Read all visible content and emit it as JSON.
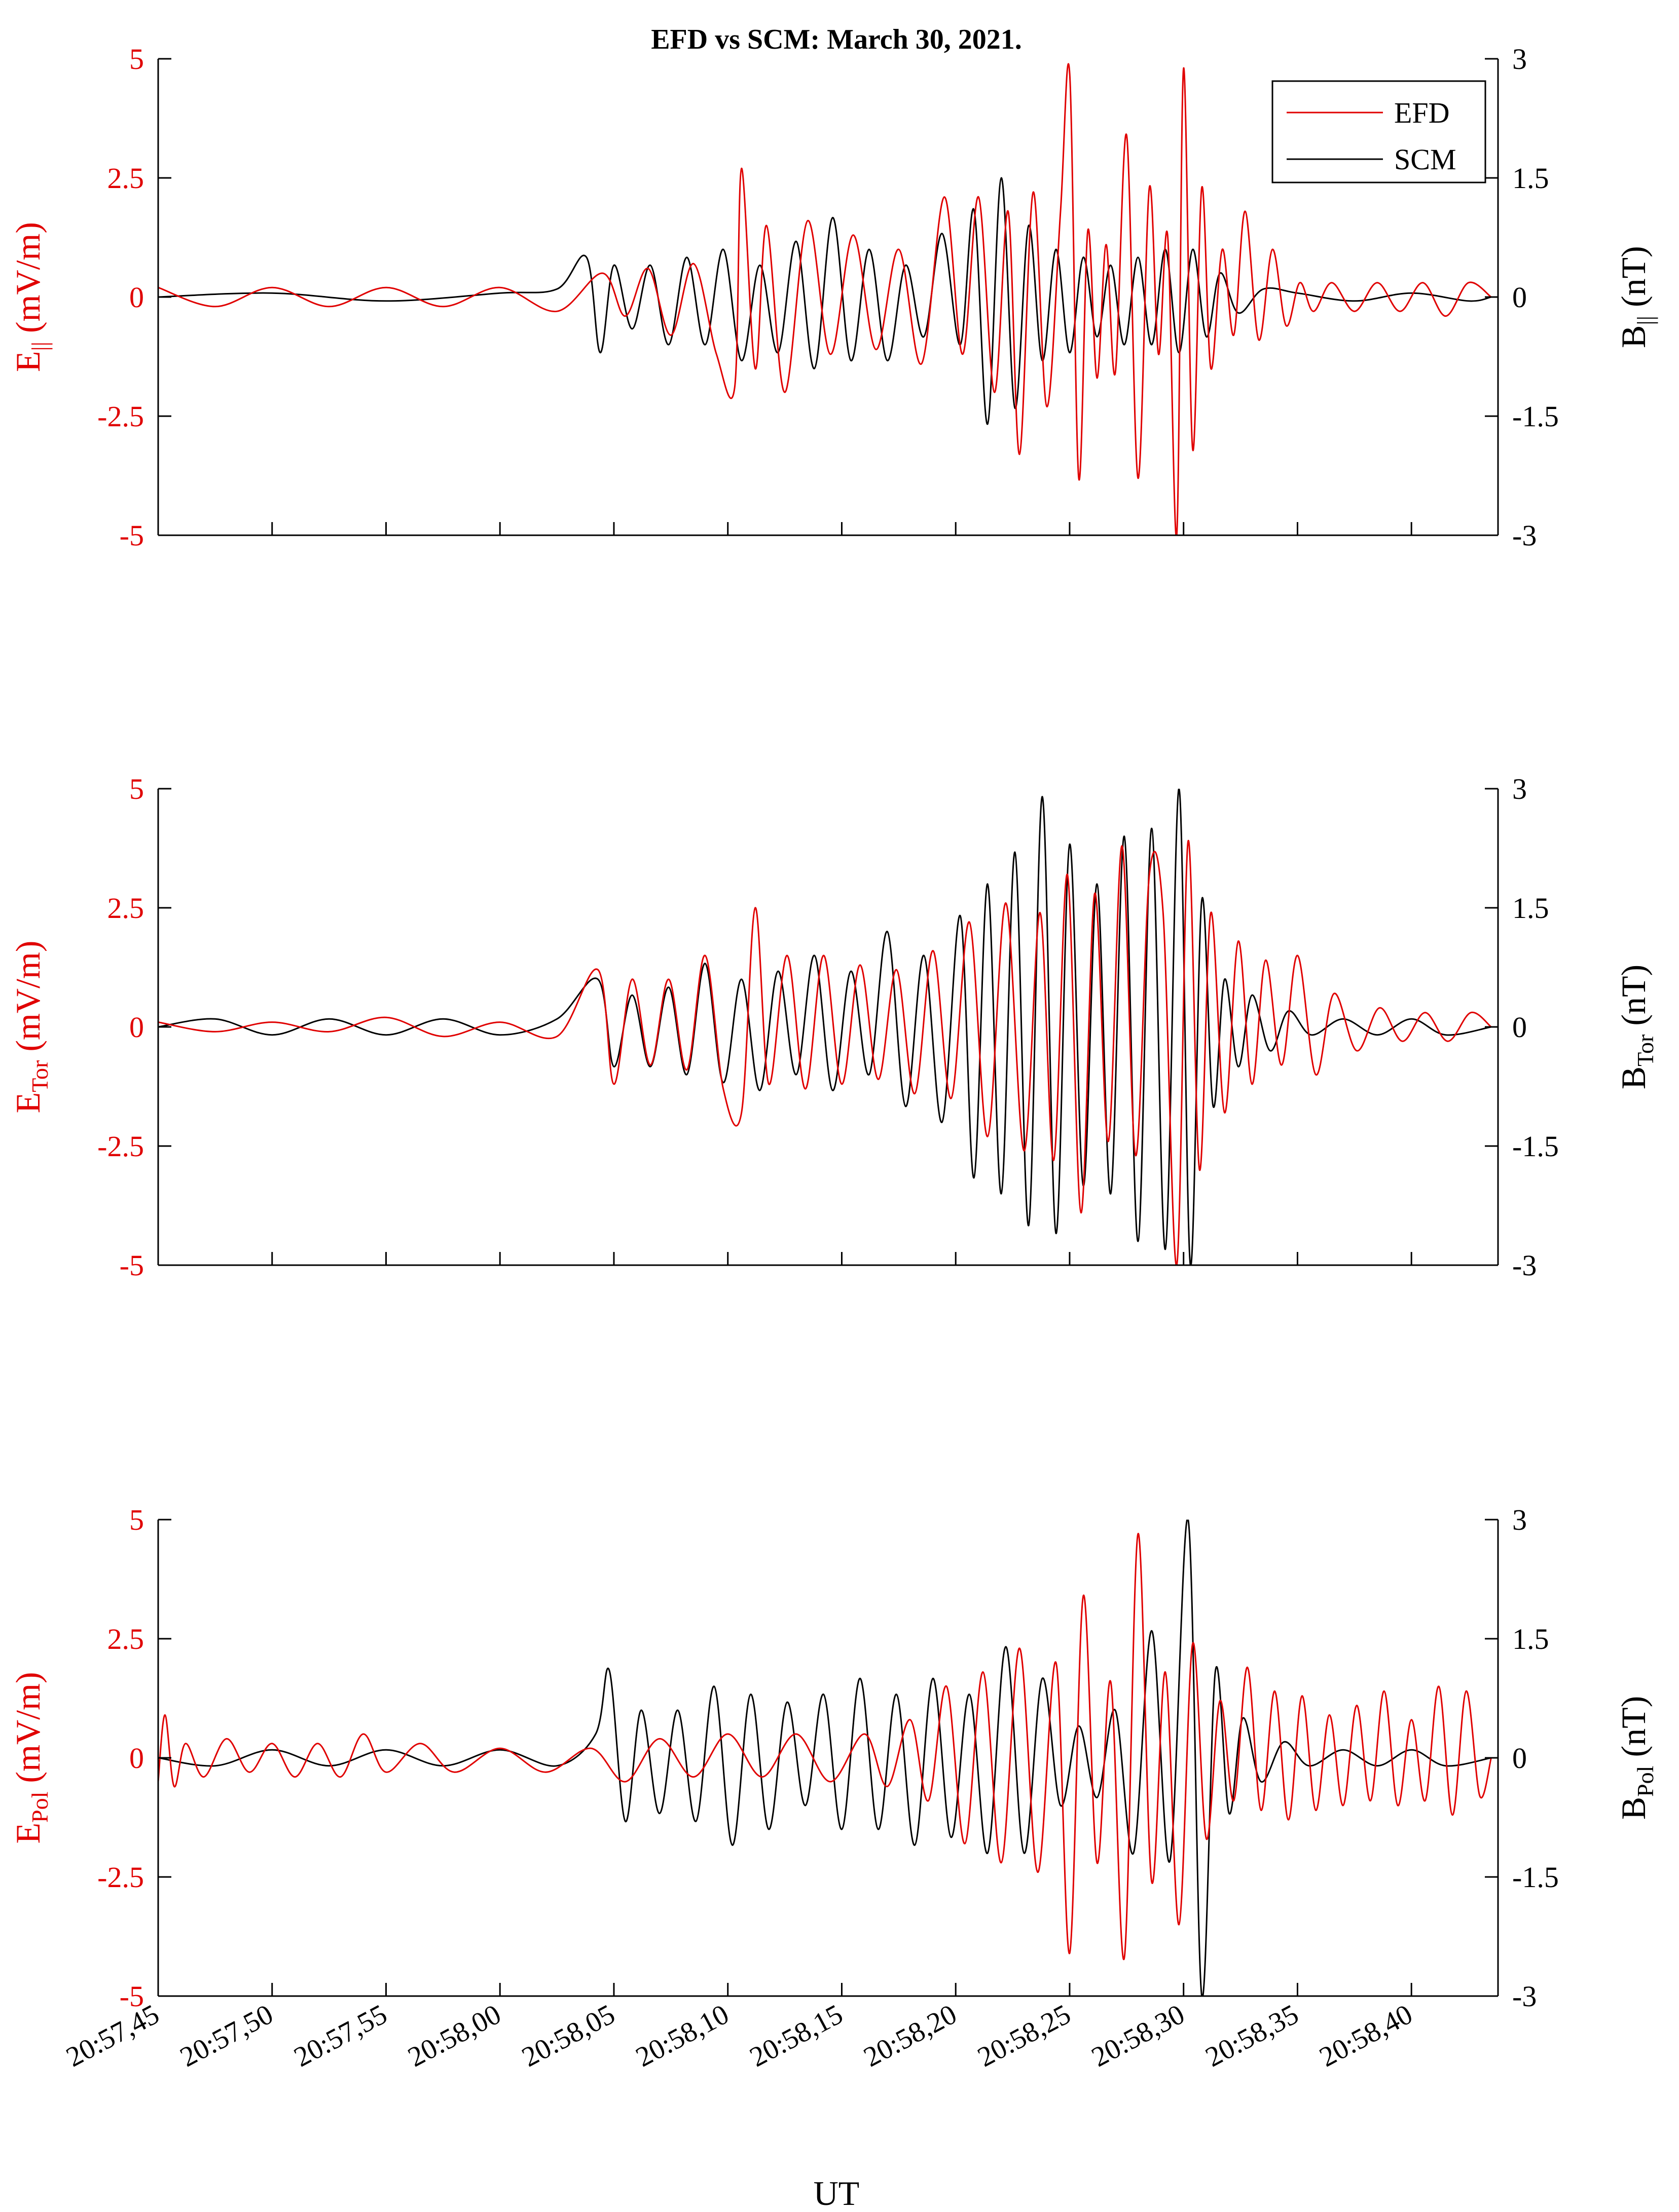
{
  "chart_data": {
    "type": "line",
    "title": "EFD vs SCM: March 30, 2021.",
    "xlabel": "UT",
    "x_tick_labels": [
      "20:57,45",
      "20:57,50",
      "20:57,55",
      "20:58,00",
      "20:58,05",
      "20:58,10",
      "20:58,15",
      "20:58,20",
      "20:58,25",
      "20:58,30",
      "20:58,35",
      "20:58,40"
    ],
    "x_tick_seconds": [
      45,
      50,
      55,
      60,
      65,
      70,
      75,
      80,
      85,
      90,
      95,
      100
    ],
    "xlim_seconds": [
      45,
      103.8
    ],
    "x_note": "seconds after 20:57:00 UT",
    "legend": {
      "placement": "top-right",
      "entries": [
        {
          "name": "EFD",
          "color": "#e00000"
        },
        {
          "name": "SCM",
          "color": "#000000"
        }
      ]
    },
    "colors": {
      "efd": "#e00000",
      "scm": "#000000"
    },
    "left_tick_labels": [
      "5",
      "2.5",
      "0",
      "-2.5",
      "-5"
    ],
    "right_tick_labels": [
      "3",
      "1.5",
      "0",
      "-1.5",
      "-3"
    ],
    "panels": [
      {
        "name": "parallel",
        "ylabel_left": {
          "main": "E",
          "sub": "||",
          "unit": " (mV/m)"
        },
        "ylabel_right": {
          "main": "B",
          "sub": "||",
          "unit": " (nT)"
        },
        "ylim_left": [
          -5,
          5
        ],
        "ylim_right": [
          -3,
          3
        ],
        "series": [
          {
            "name": "EFD",
            "axis": "left",
            "x": [
              45,
              47.5,
              50,
              52.5,
              55,
              57.5,
              60,
              62.5,
              64.5,
              65.5,
              66.5,
              67.5,
              68.5,
              69.5,
              70.3,
              70.6,
              71.2,
              71.7,
              72.5,
              73.5,
              74.5,
              75.5,
              76.5,
              77.5,
              78.5,
              79.5,
              80.3,
              81.0,
              81.7,
              82.3,
              82.8,
              83.4,
              84.0,
              84.6,
              85.0,
              85.4,
              85.8,
              86.2,
              86.6,
              87.0,
              87.5,
              88.0,
              88.5,
              88.9,
              89.3,
              89.7,
              90.0,
              90.4,
              90.8,
              91.2,
              91.7,
              92.2,
              92.7,
              93.3,
              93.9,
              94.5,
              95.1,
              95.7,
              96.5,
              97.5,
              98.5,
              99.5,
              100.5,
              101.5,
              102.5,
              103.5
            ],
            "y": [
              0.2,
              -0.2,
              0.2,
              -0.2,
              0.2,
              -0.2,
              0.2,
              -0.3,
              0.5,
              -0.4,
              0.6,
              -0.8,
              0.7,
              -1.2,
              -1.9,
              2.7,
              -1.5,
              1.5,
              -2.0,
              1.6,
              -1.2,
              1.3,
              -1.1,
              1.0,
              -1.4,
              2.1,
              -1.2,
              2.1,
              -2.0,
              1.8,
              -3.3,
              2.2,
              -2.3,
              1.8,
              4.7,
              -3.8,
              1.4,
              -1.7,
              1.1,
              -1.6,
              3.4,
              -3.8,
              2.3,
              -1.2,
              1.3,
              -5.0,
              4.8,
              -3.2,
              2.3,
              -1.5,
              1.0,
              -0.8,
              1.8,
              -0.9,
              1.0,
              -0.6,
              0.3,
              -0.3,
              0.3,
              -0.3,
              0.3,
              -0.3,
              0.3,
              -0.4,
              0.3,
              0
            ]
          },
          {
            "name": "SCM",
            "axis": "right",
            "x": [
              45,
              50,
              55,
              60,
              62.5,
              63.8,
              64.4,
              65.0,
              65.8,
              66.6,
              67.4,
              68.2,
              69.0,
              69.8,
              70.6,
              71.4,
              72.2,
              73.0,
              73.8,
              74.6,
              75.4,
              76.2,
              77.0,
              77.8,
              78.6,
              79.4,
              80.2,
              80.8,
              81.4,
              82.0,
              82.6,
              83.2,
              83.8,
              84.4,
              85.0,
              85.6,
              86.2,
              86.8,
              87.4,
              88.0,
              88.6,
              89.2,
              89.8,
              90.4,
              91.0,
              91.6,
              92.4,
              93.5,
              95,
              97.5,
              100,
              102.5,
              103.5
            ],
            "y": [
              0,
              0.05,
              -0.05,
              0.05,
              0.1,
              0.5,
              -0.7,
              0.4,
              -0.4,
              0.4,
              -0.6,
              0.5,
              -0.6,
              0.6,
              -0.8,
              0.4,
              -0.7,
              0.7,
              -0.9,
              1.0,
              -0.8,
              0.6,
              -0.8,
              0.4,
              -0.5,
              0.8,
              -0.6,
              1.1,
              -1.6,
              1.5,
              -1.4,
              0.9,
              -0.8,
              0.6,
              -0.7,
              0.5,
              -0.5,
              0.4,
              -0.6,
              0.5,
              -0.6,
              0.6,
              -0.7,
              0.6,
              -0.5,
              0.3,
              -0.2,
              0.1,
              0.05,
              -0.05,
              0.05,
              -0.05,
              0
            ]
          }
        ]
      },
      {
        "name": "toroidal",
        "ylabel_left": {
          "main": "E",
          "sub": "Tor",
          "unit": " (mV/m)"
        },
        "ylabel_right": {
          "main": "B",
          "sub": "Tor",
          "unit": " (nT)"
        },
        "ylim_left": [
          -5,
          5
        ],
        "ylim_right": [
          -3,
          3
        ],
        "series": [
          {
            "name": "EFD",
            "axis": "left",
            "x": [
              45,
              47.5,
              50,
              52.5,
              55,
              57.5,
              60,
              62.5,
              64.3,
              65.0,
              65.8,
              66.6,
              67.4,
              68.2,
              69.0,
              69.8,
              70.6,
              71.2,
              71.8,
              72.6,
              73.4,
              74.2,
              75.0,
              75.8,
              76.6,
              77.4,
              78.2,
              79.0,
              79.8,
              80.6,
              81.4,
              82.2,
              83.0,
              83.7,
              84.3,
              84.9,
              85.5,
              86.1,
              86.7,
              87.3,
              87.9,
              88.5,
              89.1,
              89.7,
              90.2,
              90.7,
              91.2,
              91.8,
              92.4,
              93.0,
              93.6,
              94.3,
              95.0,
              95.8,
              96.6,
              97.6,
              98.6,
              99.6,
              100.6,
              101.6,
              102.6,
              103.5
            ],
            "y": [
              0.1,
              -0.1,
              0.1,
              -0.1,
              0.2,
              -0.2,
              0.1,
              -0.2,
              1.2,
              -1.2,
              1.0,
              -0.8,
              1.0,
              -0.9,
              1.5,
              -1.3,
              -1.8,
              2.5,
              -1.2,
              1.5,
              -1.3,
              1.5,
              -1.2,
              1.3,
              -1.1,
              1.2,
              -1.4,
              1.6,
              -1.5,
              2.2,
              -2.3,
              2.6,
              -2.6,
              2.4,
              -2.8,
              3.2,
              -3.9,
              2.8,
              -2.4,
              3.8,
              -2.7,
              3.2,
              2.4,
              -5.0,
              3.9,
              -3.0,
              2.4,
              -1.8,
              1.8,
              -1.2,
              1.4,
              -0.8,
              1.5,
              -1.0,
              0.7,
              -0.5,
              0.4,
              -0.3,
              0.3,
              -0.3,
              0.3,
              0
            ]
          },
          {
            "name": "SCM",
            "axis": "right",
            "x": [
              45,
              47.5,
              50,
              52.5,
              55,
              57.5,
              60,
              62.5,
              64.3,
              65.0,
              65.8,
              66.6,
              67.4,
              68.2,
              69.0,
              69.8,
              70.6,
              71.4,
              72.2,
              73.0,
              73.8,
              74.6,
              75.4,
              76.2,
              77.0,
              77.8,
              78.6,
              79.4,
              80.2,
              80.8,
              81.4,
              82.0,
              82.6,
              83.2,
              83.8,
              84.4,
              85.0,
              85.6,
              86.2,
              86.8,
              87.4,
              88.0,
              88.6,
              89.2,
              89.8,
              90.3,
              90.8,
              91.3,
              91.8,
              92.4,
              93.0,
              93.8,
              94.6,
              95.6,
              97,
              98.5,
              100,
              101.5,
              103.5
            ],
            "y": [
              0,
              0.1,
              -0.1,
              0.1,
              -0.1,
              0.1,
              -0.1,
              0.1,
              0.6,
              -0.5,
              0.4,
              -0.5,
              0.5,
              -0.6,
              0.8,
              -0.7,
              0.6,
              -0.8,
              0.7,
              -0.6,
              0.9,
              -0.8,
              0.7,
              -0.6,
              1.2,
              -1.0,
              0.9,
              -1.2,
              1.4,
              -1.9,
              1.8,
              -2.1,
              2.2,
              -2.5,
              2.9,
              -2.6,
              2.3,
              -2.0,
              1.8,
              -2.1,
              2.4,
              -2.7,
              2.5,
              -2.8,
              3.0,
              -3.0,
              1.6,
              -1.0,
              0.6,
              -0.5,
              0.4,
              -0.3,
              0.2,
              -0.1,
              0.1,
              -0.1,
              0.1,
              -0.1,
              0
            ]
          }
        ]
      },
      {
        "name": "poloidal",
        "ylabel_left": {
          "main": "E",
          "sub": "Pol",
          "unit": " (mV/m)"
        },
        "ylabel_right": {
          "main": "B",
          "sub": "Pol",
          "unit": " (nT)"
        },
        "ylim_left": [
          -5,
          5
        ],
        "ylim_right": [
          -3,
          3
        ],
        "series": [
          {
            "name": "EFD",
            "axis": "left",
            "x": [
              45,
              45.3,
              45.7,
              46.2,
              47.0,
              48.0,
              49.0,
              50.0,
              51.0,
              52.0,
              53.0,
              54.0,
              55.0,
              56.5,
              58.0,
              60.0,
              62.0,
              64.0,
              65.5,
              67.0,
              68.5,
              70.0,
              71.5,
              73.0,
              74.5,
              76.0,
              77.0,
              78.0,
              78.8,
              79.6,
              80.4,
              81.2,
              82.0,
              82.8,
              83.6,
              84.4,
              85.0,
              85.6,
              86.2,
              86.8,
              87.4,
              88.0,
              88.6,
              89.2,
              89.8,
              90.4,
              91.0,
              91.6,
              92.2,
              92.8,
              93.4,
              94.0,
              94.6,
              95.2,
              95.8,
              96.4,
              97.0,
              97.6,
              98.2,
              98.8,
              99.4,
              100.0,
              100.6,
              101.2,
              101.8,
              102.4,
              103.0,
              103.5
            ],
            "y": [
              -0.5,
              0.9,
              -0.6,
              0.3,
              -0.4,
              0.4,
              -0.3,
              0.3,
              -0.4,
              0.3,
              -0.4,
              0.5,
              -0.3,
              0.3,
              -0.3,
              0.2,
              -0.3,
              0.2,
              -0.5,
              0.4,
              -0.4,
              0.5,
              -0.4,
              0.5,
              -0.5,
              0.5,
              -0.6,
              0.8,
              -0.9,
              1.5,
              -1.8,
              1.8,
              -2.2,
              2.3,
              -2.4,
              2.0,
              -4.1,
              3.4,
              -2.2,
              1.6,
              -4.2,
              4.7,
              -2.6,
              1.8,
              -3.5,
              2.4,
              -1.7,
              1.2,
              -0.9,
              1.9,
              -1.1,
              1.4,
              -1.3,
              1.3,
              -1.1,
              0.9,
              -1.0,
              1.1,
              -0.9,
              1.4,
              -1.0,
              0.8,
              -0.9,
              1.5,
              -1.2,
              1.4,
              -0.8,
              0
            ]
          },
          {
            "name": "SCM",
            "axis": "right",
            "x": [
              45,
              47.5,
              50,
              52.5,
              55,
              57.5,
              60,
              62.5,
              64.2,
              64.8,
              65.5,
              66.2,
              67.0,
              67.8,
              68.6,
              69.4,
              70.2,
              71.0,
              71.8,
              72.6,
              73.4,
              74.2,
              75.0,
              75.8,
              76.6,
              77.4,
              78.2,
              79.0,
              79.8,
              80.6,
              81.4,
              82.2,
              83.0,
              83.8,
              84.6,
              85.4,
              86.2,
              87.0,
              87.8,
              88.6,
              89.4,
              90.2,
              90.8,
              91.4,
              92.0,
              92.6,
              93.4,
              94.4,
              95.5,
              97,
              98.5,
              100,
              101.5,
              103.5
            ],
            "y": [
              0,
              -0.1,
              0.1,
              -0.1,
              0.1,
              -0.1,
              0.1,
              -0.1,
              0.3,
              1.1,
              -0.8,
              0.6,
              -0.7,
              0.6,
              -0.8,
              0.9,
              -1.1,
              0.8,
              -0.9,
              0.7,
              -0.6,
              0.8,
              -0.9,
              1.0,
              -0.9,
              0.8,
              -1.1,
              1.0,
              -1.0,
              0.8,
              -1.2,
              1.4,
              -1.2,
              1.0,
              -0.6,
              0.4,
              -0.5,
              0.6,
              -1.2,
              1.6,
              -1.3,
              3.0,
              -3.0,
              1.1,
              -0.7,
              0.5,
              -0.3,
              0.2,
              -0.1,
              0.1,
              -0.1,
              0.1,
              -0.1,
              0
            ]
          }
        ]
      }
    ]
  }
}
